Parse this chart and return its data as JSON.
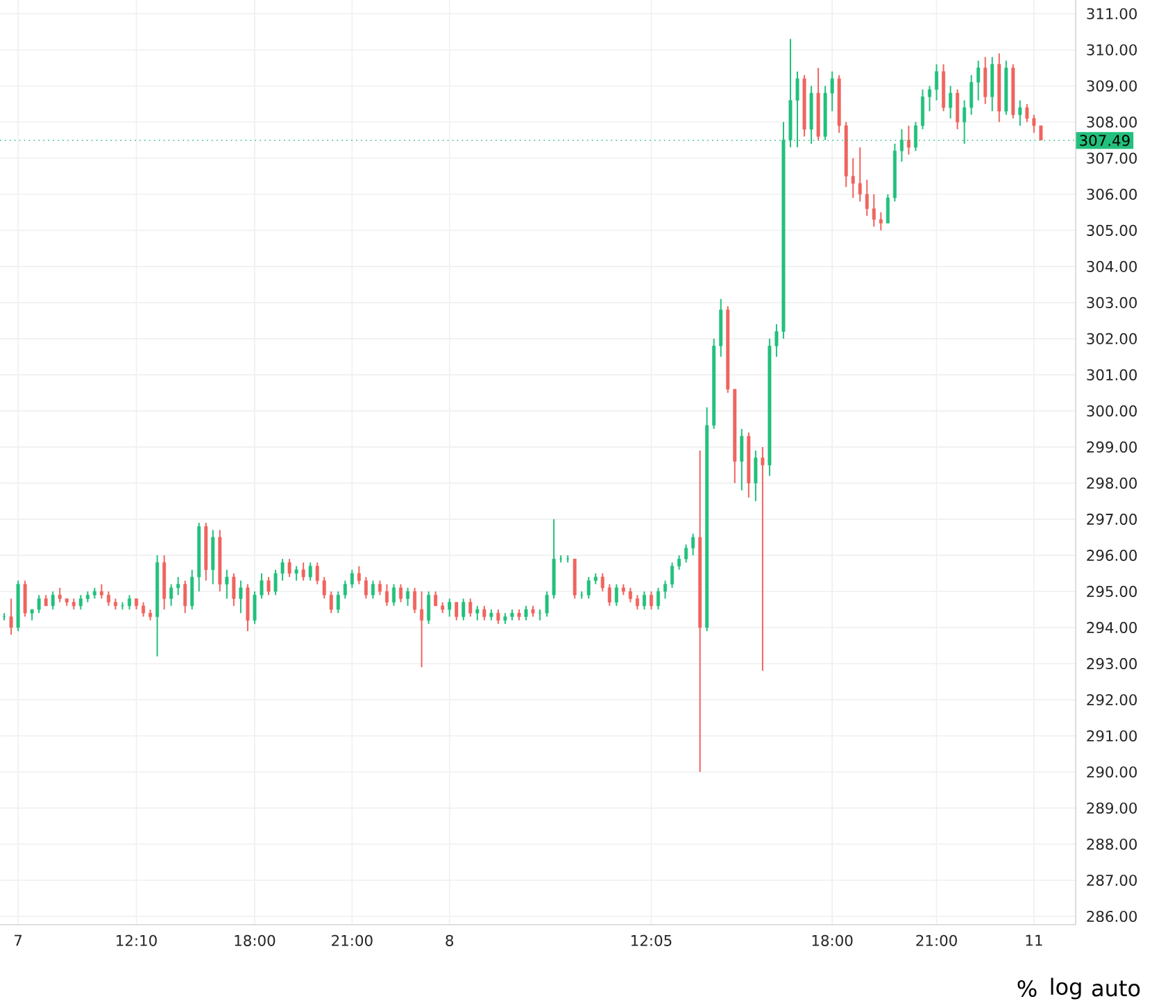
{
  "chart_data": {
    "type": "candlestick",
    "categories": [
      null,
      null,
      "7",
      null,
      null,
      null,
      null,
      null,
      null,
      null,
      null,
      null,
      null,
      null,
      null,
      null,
      null,
      null,
      null,
      "12:10",
      null,
      null,
      null,
      null,
      null,
      null,
      null,
      null,
      null,
      null,
      null,
      null,
      null,
      null,
      null,
      null,
      "18:00",
      null,
      null,
      null,
      null,
      null,
      null,
      null,
      null,
      null,
      null,
      null,
      null,
      null,
      "21:00",
      null,
      null,
      null,
      null,
      null,
      null,
      null,
      null,
      null,
      null,
      null,
      null,
      null,
      "8",
      null,
      null,
      null,
      null,
      null,
      null,
      null,
      null,
      null,
      null,
      null,
      null,
      null,
      null,
      null,
      null,
      null,
      null,
      null,
      null,
      null,
      null,
      null,
      null,
      null,
      null,
      null,
      null,
      "12:05",
      null,
      null,
      null,
      null,
      null,
      null,
      null,
      null,
      null,
      null,
      null,
      null,
      null,
      null,
      null,
      null,
      null,
      null,
      null,
      null,
      null,
      null,
      null,
      null,
      null,
      "18:00",
      null,
      null,
      null,
      null,
      null,
      null,
      null,
      null,
      null,
      null,
      null,
      null,
      null,
      null,
      "21:00",
      null,
      null,
      null,
      null,
      null,
      null,
      null,
      null,
      null,
      null,
      null,
      null,
      null,
      "11",
      null
    ],
    "ohlc": [
      [
        294.3,
        294.4,
        294.2,
        294.3
      ],
      [
        294.3,
        294.8,
        293.8,
        294.0
      ],
      [
        294.0,
        295.3,
        293.9,
        295.2
      ],
      [
        295.2,
        295.3,
        294.3,
        294.4
      ],
      [
        294.4,
        294.5,
        294.2,
        294.5
      ],
      [
        294.5,
        294.9,
        294.4,
        294.8
      ],
      [
        294.8,
        294.9,
        294.6,
        294.6
      ],
      [
        294.6,
        295.0,
        294.5,
        294.9
      ],
      [
        294.9,
        295.1,
        294.7,
        294.8
      ],
      [
        294.8,
        294.8,
        294.6,
        294.7
      ],
      [
        294.7,
        294.8,
        294.5,
        294.6
      ],
      [
        294.6,
        294.9,
        294.5,
        294.8
      ],
      [
        294.8,
        295.0,
        294.7,
        294.9
      ],
      [
        294.9,
        295.1,
        294.8,
        295.0
      ],
      [
        295.0,
        295.2,
        294.8,
        294.9
      ],
      [
        294.9,
        295.0,
        294.6,
        294.7
      ],
      [
        294.7,
        294.8,
        294.5,
        294.6
      ],
      [
        294.6,
        294.7,
        294.5,
        294.6
      ],
      [
        294.6,
        294.9,
        294.5,
        294.8
      ],
      [
        294.8,
        294.8,
        294.5,
        294.6
      ],
      [
        294.6,
        294.7,
        294.3,
        294.4
      ],
      [
        294.4,
        294.5,
        294.2,
        294.3
      ],
      [
        294.3,
        296.0,
        293.2,
        295.8
      ],
      [
        295.8,
        296.0,
        294.5,
        294.8
      ],
      [
        294.8,
        295.2,
        294.6,
        295.1
      ],
      [
        295.1,
        295.4,
        294.9,
        295.2
      ],
      [
        295.2,
        295.3,
        294.4,
        294.6
      ],
      [
        294.6,
        295.6,
        294.5,
        295.4
      ],
      [
        295.4,
        296.9,
        295.0,
        296.8
      ],
      [
        296.8,
        296.9,
        295.3,
        295.6
      ],
      [
        295.6,
        296.7,
        295.2,
        296.5
      ],
      [
        296.5,
        296.7,
        295.0,
        295.2
      ],
      [
        295.2,
        295.6,
        294.8,
        295.4
      ],
      [
        295.4,
        295.5,
        294.6,
        294.8
      ],
      [
        294.8,
        295.3,
        294.4,
        295.1
      ],
      [
        295.1,
        295.2,
        293.9,
        294.2
      ],
      [
        294.2,
        295.0,
        294.1,
        294.9
      ],
      [
        294.9,
        295.5,
        294.8,
        295.3
      ],
      [
        295.3,
        295.4,
        294.9,
        295.0
      ],
      [
        295.0,
        295.6,
        294.9,
        295.5
      ],
      [
        295.5,
        295.9,
        295.3,
        295.8
      ],
      [
        295.8,
        295.9,
        295.4,
        295.5
      ],
      [
        295.5,
        295.7,
        295.3,
        295.6
      ],
      [
        295.6,
        295.8,
        295.3,
        295.4
      ],
      [
        295.4,
        295.8,
        295.3,
        295.7
      ],
      [
        295.7,
        295.8,
        295.2,
        295.3
      ],
      [
        295.3,
        295.4,
        294.8,
        294.9
      ],
      [
        294.9,
        295.0,
        294.4,
        294.5
      ],
      [
        294.5,
        295.0,
        294.4,
        294.9
      ],
      [
        294.9,
        295.3,
        294.8,
        295.2
      ],
      [
        295.2,
        295.6,
        295.1,
        295.5
      ],
      [
        295.5,
        295.7,
        295.2,
        295.3
      ],
      [
        295.3,
        295.4,
        294.8,
        294.9
      ],
      [
        294.9,
        295.3,
        294.8,
        295.2
      ],
      [
        295.2,
        295.3,
        294.9,
        295.0
      ],
      [
        295.0,
        295.2,
        294.6,
        294.7
      ],
      [
        294.7,
        295.2,
        294.6,
        295.1
      ],
      [
        295.1,
        295.2,
        294.7,
        294.8
      ],
      [
        294.8,
        295.1,
        294.6,
        295.0
      ],
      [
        295.0,
        295.1,
        294.4,
        294.5
      ],
      [
        294.5,
        295.0,
        292.9,
        294.2
      ],
      [
        294.2,
        295.0,
        294.1,
        294.9
      ],
      [
        294.9,
        295.0,
        294.6,
        294.6
      ],
      [
        294.6,
        294.7,
        294.4,
        294.5
      ],
      [
        294.5,
        294.8,
        294.3,
        294.7
      ],
      [
        294.7,
        294.7,
        294.2,
        294.3
      ],
      [
        294.3,
        294.8,
        294.2,
        294.7
      ],
      [
        294.7,
        294.8,
        294.3,
        294.4
      ],
      [
        294.4,
        294.6,
        294.2,
        294.5
      ],
      [
        294.5,
        294.6,
        294.2,
        294.3
      ],
      [
        294.3,
        294.5,
        294.2,
        294.4
      ],
      [
        294.4,
        294.5,
        294.1,
        294.2
      ],
      [
        294.2,
        294.4,
        294.1,
        294.3
      ],
      [
        294.3,
        294.5,
        294.2,
        294.4
      ],
      [
        294.4,
        294.5,
        294.2,
        294.3
      ],
      [
        294.3,
        294.6,
        294.2,
        294.5
      ],
      [
        294.5,
        294.6,
        294.3,
        294.4
      ],
      [
        294.4,
        294.5,
        294.2,
        294.4
      ],
      [
        294.4,
        295.0,
        294.3,
        294.9
      ],
      [
        294.9,
        297.0,
        294.8,
        295.9
      ],
      [
        295.9,
        296.0,
        295.8,
        295.9
      ],
      [
        295.9,
        296.0,
        295.8,
        295.9
      ],
      [
        295.9,
        295.9,
        294.8,
        294.9
      ],
      [
        294.9,
        295.0,
        294.8,
        294.9
      ],
      [
        294.9,
        295.4,
        294.8,
        295.3
      ],
      [
        295.3,
        295.5,
        295.2,
        295.4
      ],
      [
        295.4,
        295.5,
        295.0,
        295.1
      ],
      [
        295.1,
        295.2,
        294.6,
        294.7
      ],
      [
        294.7,
        295.2,
        294.6,
        295.1
      ],
      [
        295.1,
        295.2,
        294.9,
        295.0
      ],
      [
        295.0,
        295.1,
        294.7,
        294.8
      ],
      [
        294.8,
        294.9,
        294.5,
        294.6
      ],
      [
        294.6,
        295.0,
        294.5,
        294.9
      ],
      [
        294.9,
        295.0,
        294.5,
        294.6
      ],
      [
        294.6,
        295.1,
        294.5,
        295.0
      ],
      [
        295.0,
        295.3,
        294.8,
        295.2
      ],
      [
        295.2,
        295.8,
        295.1,
        295.7
      ],
      [
        295.7,
        296.0,
        295.6,
        295.9
      ],
      [
        295.9,
        296.3,
        295.8,
        296.2
      ],
      [
        296.2,
        296.6,
        296.0,
        296.5
      ],
      [
        296.5,
        298.9,
        290.0,
        294.0
      ],
      [
        294.0,
        300.1,
        293.9,
        299.6
      ],
      [
        299.6,
        302.0,
        299.5,
        301.8
      ],
      [
        301.8,
        303.1,
        301.5,
        302.8
      ],
      [
        302.8,
        302.9,
        300.5,
        300.6
      ],
      [
        300.6,
        300.6,
        298.0,
        298.6
      ],
      [
        298.6,
        299.5,
        297.8,
        299.3
      ],
      [
        299.3,
        299.4,
        297.6,
        298.0
      ],
      [
        298.0,
        298.9,
        297.5,
        298.7
      ],
      [
        298.7,
        299.0,
        292.8,
        298.5
      ],
      [
        298.5,
        302.0,
        298.2,
        301.8
      ],
      [
        301.8,
        302.4,
        301.5,
        302.2
      ],
      [
        302.2,
        308.0,
        302.0,
        307.5
      ],
      [
        307.5,
        310.3,
        307.3,
        308.6
      ],
      [
        308.6,
        309.4,
        307.3,
        309.2
      ],
      [
        309.2,
        309.3,
        307.6,
        307.8
      ],
      [
        307.8,
        309.0,
        307.4,
        308.8
      ],
      [
        308.8,
        309.5,
        307.5,
        307.6
      ],
      [
        307.6,
        309.0,
        307.5,
        308.8
      ],
      [
        308.8,
        309.4,
        308.3,
        309.2
      ],
      [
        309.2,
        309.3,
        307.7,
        307.9
      ],
      [
        307.9,
        308.0,
        306.2,
        306.5
      ],
      [
        306.5,
        307.0,
        305.9,
        306.3
      ],
      [
        306.3,
        307.3,
        305.8,
        306.0
      ],
      [
        306.0,
        306.4,
        305.4,
        305.6
      ],
      [
        305.6,
        306.0,
        305.1,
        305.3
      ],
      [
        305.3,
        305.5,
        305.0,
        305.2
      ],
      [
        305.2,
        306.0,
        305.2,
        305.9
      ],
      [
        305.9,
        307.4,
        305.8,
        307.2
      ],
      [
        307.2,
        307.8,
        306.9,
        307.5
      ],
      [
        307.5,
        307.9,
        307.1,
        307.3
      ],
      [
        307.3,
        308.0,
        307.2,
        307.9
      ],
      [
        307.9,
        308.9,
        307.8,
        308.7
      ],
      [
        308.7,
        309.0,
        308.3,
        308.9
      ],
      [
        308.9,
        309.6,
        308.6,
        309.4
      ],
      [
        309.4,
        309.6,
        308.3,
        308.4
      ],
      [
        308.4,
        309.0,
        308.1,
        308.8
      ],
      [
        308.8,
        308.9,
        307.8,
        308.0
      ],
      [
        308.0,
        308.6,
        307.4,
        308.4
      ],
      [
        308.4,
        309.3,
        308.2,
        309.1
      ],
      [
        309.1,
        309.7,
        308.6,
        309.5
      ],
      [
        309.5,
        309.8,
        308.5,
        308.7
      ],
      [
        308.7,
        309.8,
        308.3,
        309.6
      ],
      [
        309.6,
        309.9,
        308.0,
        308.3
      ],
      [
        308.3,
        309.7,
        308.2,
        309.5
      ],
      [
        309.5,
        309.6,
        308.1,
        308.2
      ],
      [
        308.2,
        308.6,
        307.9,
        308.4
      ],
      [
        308.4,
        308.5,
        308.0,
        308.1
      ],
      [
        308.1,
        308.2,
        307.7,
        307.9
      ],
      [
        307.9,
        307.9,
        307.5,
        307.5
      ]
    ],
    "colors": [
      "#22c07c",
      "#f0645f",
      "#22c07c",
      "#f0645f",
      "#22c07c",
      "#22c07c",
      "#f0645f",
      "#22c07c",
      "#f0645f",
      "#f0645f",
      "#f0645f",
      "#22c07c",
      "#22c07c",
      "#22c07c",
      "#f0645f",
      "#f0645f",
      "#f0645f",
      "#22c07c",
      "#22c07c",
      "#f0645f",
      "#f0645f",
      "#f0645f",
      "#22c07c",
      "#f0645f",
      "#22c07c",
      "#22c07c",
      "#f0645f",
      "#22c07c",
      "#22c07c",
      "#f0645f",
      "#22c07c",
      "#f0645f",
      "#22c07c",
      "#f0645f",
      "#22c07c",
      "#f0645f",
      "#22c07c",
      "#22c07c",
      "#f0645f",
      "#22c07c",
      "#22c07c",
      "#f0645f",
      "#22c07c",
      "#f0645f",
      "#22c07c",
      "#f0645f",
      "#f0645f",
      "#f0645f",
      "#22c07c",
      "#22c07c",
      "#22c07c",
      "#f0645f",
      "#f0645f",
      "#22c07c",
      "#f0645f",
      "#f0645f",
      "#22c07c",
      "#f0645f",
      "#22c07c",
      "#f0645f",
      "#f0645f",
      "#22c07c",
      "#f0645f",
      "#f0645f",
      "#22c07c",
      "#f0645f",
      "#22c07c",
      "#f0645f",
      "#22c07c",
      "#f0645f",
      "#22c07c",
      "#f0645f",
      "#22c07c",
      "#22c07c",
      "#f0645f",
      "#22c07c",
      "#f0645f",
      "#22c07c",
      "#22c07c",
      "#22c07c",
      "#22c07c",
      "#22c07c",
      "#f0645f",
      "#22c07c",
      "#22c07c",
      "#22c07c",
      "#f0645f",
      "#f0645f",
      "#22c07c",
      "#f0645f",
      "#f0645f",
      "#f0645f",
      "#22c07c",
      "#f0645f",
      "#22c07c",
      "#22c07c",
      "#22c07c",
      "#22c07c",
      "#22c07c",
      "#22c07c",
      "#f0645f",
      "#22c07c",
      "#22c07c",
      "#22c07c",
      "#f0645f",
      "#f0645f",
      "#22c07c",
      "#f0645f",
      "#22c07c",
      "#f0645f",
      "#22c07c",
      "#22c07c",
      "#22c07c",
      "#22c07c",
      "#22c07c",
      "#f0645f",
      "#22c07c",
      "#f0645f",
      "#22c07c",
      "#22c07c",
      "#f0645f",
      "#f0645f",
      "#f0645f",
      "#f0645f",
      "#f0645f",
      "#f0645f",
      "#f0645f",
      "#22c07c",
      "#22c07c",
      "#22c07c",
      "#f0645f",
      "#22c07c",
      "#22c07c",
      "#22c07c",
      "#22c07c",
      "#f0645f",
      "#22c07c",
      "#f0645f",
      "#22c07c",
      "#22c07c",
      "#22c07c",
      "#f0645f",
      "#22c07c",
      "#f0645f",
      "#22c07c",
      "#f0645f",
      "#22c07c",
      "#f0645f",
      "#f0645f",
      "#f0645f"
    ],
    "ylim": [
      285.77,
      311.38
    ],
    "yticks": [
      {
        "value": 286,
        "label": "286.00"
      },
      {
        "value": 287,
        "label": "287.00"
      },
      {
        "value": 288,
        "label": "288.00"
      },
      {
        "value": 289,
        "label": "289.00"
      },
      {
        "value": 290,
        "label": "290.00"
      },
      {
        "value": 291,
        "label": "291.00"
      },
      {
        "value": 292,
        "label": "292.00"
      },
      {
        "value": 293,
        "label": "293.00"
      },
      {
        "value": 294,
        "label": "294.00"
      },
      {
        "value": 295,
        "label": "295.00"
      },
      {
        "value": 296,
        "label": "296.00"
      },
      {
        "value": 297,
        "label": "297.00"
      },
      {
        "value": 298,
        "label": "298.00"
      },
      {
        "value": 299,
        "label": "299.00"
      },
      {
        "value": 300,
        "label": "300.00"
      },
      {
        "value": 301,
        "label": "301.00"
      },
      {
        "value": 302,
        "label": "302.00"
      },
      {
        "value": 303,
        "label": "303.00"
      },
      {
        "value": 304,
        "label": "304.00"
      },
      {
        "value": 305,
        "label": "305.00"
      },
      {
        "value": 306,
        "label": "306.00"
      },
      {
        "value": 307,
        "label": "307.00"
      },
      {
        "value": 308,
        "label": "308.00"
      },
      {
        "value": 309,
        "label": "309.00"
      },
      {
        "value": 310,
        "label": "310.00"
      },
      {
        "value": 311,
        "label": "311.00"
      }
    ],
    "ref_lines": [
      {
        "axis": "y",
        "value": 307.49,
        "label": "307.49",
        "color": "#22c07c",
        "line_style": "dotted"
      }
    ],
    "grid": true,
    "annotations": [
      "%",
      "log",
      "auto"
    ]
  }
}
